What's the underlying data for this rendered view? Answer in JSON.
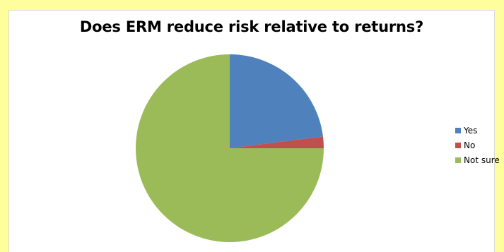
{
  "chart_data": {
    "type": "pie",
    "title": "Does ERM reduce risk relative to returns?",
    "categories": [
      "Yes",
      "No",
      "Not sure"
    ],
    "values": [
      23,
      2,
      75
    ],
    "colors": [
      "#4f81bd",
      "#c0504d",
      "#9bbb59"
    ],
    "legend_position": "right",
    "start_angle_deg": 0,
    "direction": "clockwise"
  }
}
